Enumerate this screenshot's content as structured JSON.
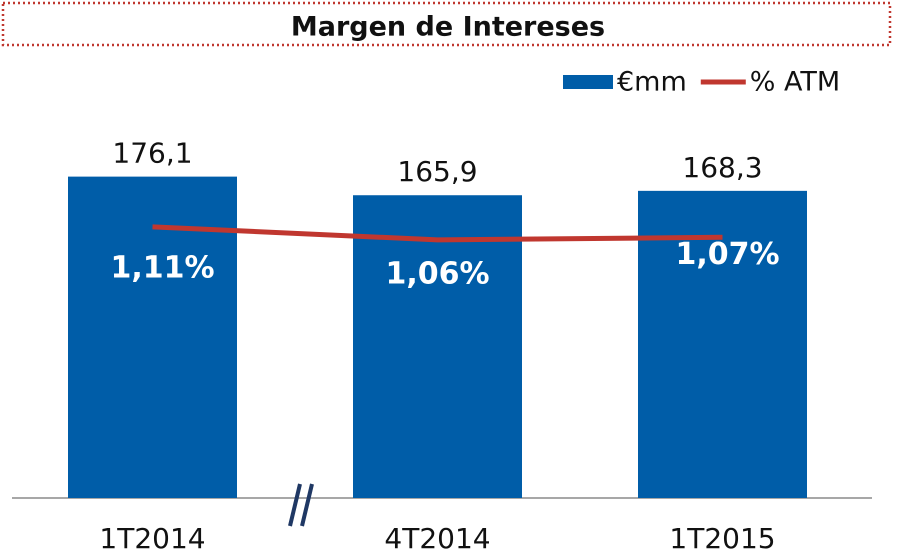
{
  "chart_data": {
    "type": "bar_line",
    "title": "Margen de Intereses",
    "categories": [
      "1T2014",
      "4T2014",
      "1T2015"
    ],
    "series": [
      {
        "name": "€mm",
        "type": "bar",
        "color": "#005da8",
        "values": [
          176.1,
          165.9,
          168.3
        ],
        "value_labels": [
          "176,1",
          "165,9",
          "168,3"
        ]
      },
      {
        "name": "% ATM",
        "type": "line",
        "axis": "y2",
        "color": "#c0372f",
        "values": [
          1.11,
          1.06,
          1.07
        ],
        "value_labels": [
          "1,11%",
          "1,06%",
          "1,07%"
        ]
      }
    ],
    "ylim": [
      0,
      200
    ],
    "y2lim": [
      0.07,
      1.47
    ],
    "legend": "top-right"
  }
}
